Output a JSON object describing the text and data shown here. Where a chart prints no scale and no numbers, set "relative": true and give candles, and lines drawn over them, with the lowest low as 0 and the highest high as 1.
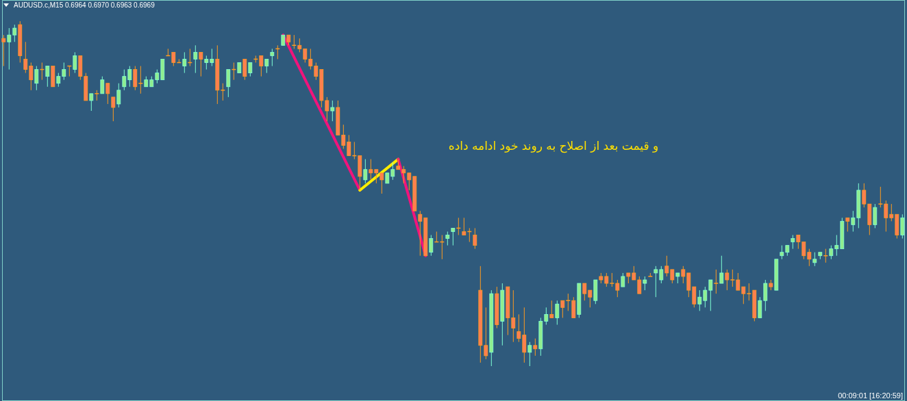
{
  "chart_data": {
    "type": "candlestick",
    "title": "AUDUSD.c,M15  0.6964 0.6970 0.6963 0.6969",
    "relative": true,
    "categories": [
      null,
      null,
      null,
      null,
      null,
      null,
      null,
      null,
      null,
      null,
      null,
      null,
      null,
      null,
      null,
      null,
      null,
      null,
      null,
      null,
      null,
      null,
      null,
      null,
      null,
      null,
      null,
      null,
      null,
      null,
      null,
      null,
      null,
      null,
      null,
      null,
      null,
      null,
      null,
      null,
      null,
      null,
      null,
      null,
      null,
      null,
      null,
      null,
      null,
      null,
      null,
      null,
      null,
      null,
      null,
      null,
      null,
      null,
      null,
      null,
      null,
      null,
      null,
      null,
      null,
      null,
      null,
      null,
      null,
      null,
      null,
      null,
      null,
      null,
      null,
      null,
      null,
      null,
      null,
      null,
      null,
      null,
      null,
      null,
      null,
      null,
      null,
      null,
      null,
      null,
      null,
      null,
      null,
      null,
      null,
      null,
      null,
      null,
      null,
      null,
      null,
      null,
      null,
      null,
      null,
      null,
      null,
      null,
      null,
      null,
      null,
      null,
      null,
      null,
      null,
      null,
      null,
      null,
      null,
      null,
      null,
      null,
      null,
      null,
      null,
      null,
      null,
      null,
      null,
      null,
      null,
      null,
      null,
      null,
      null,
      null,
      null,
      null,
      null,
      null,
      null,
      null,
      null,
      null,
      null,
      null,
      null,
      null,
      null,
      null,
      null,
      null,
      null,
      null,
      null,
      null,
      null,
      null,
      null,
      null,
      null,
      null,
      null,
      null,
      null
    ],
    "ohlc": [
      [
        0.95,
        0.96,
        0.87,
        0.94
      ],
      [
        0.94,
        0.98,
        0.86,
        0.96
      ],
      [
        0.96,
        0.99,
        0.94,
        0.98
      ],
      [
        0.99,
        1.0,
        0.88,
        0.9
      ],
      [
        0.89,
        0.94,
        0.85,
        0.86
      ],
      [
        0.87,
        0.88,
        0.8,
        0.83
      ],
      [
        0.82,
        0.87,
        0.8,
        0.86
      ],
      [
        0.86,
        0.88,
        0.83,
        0.86
      ],
      [
        0.84,
        0.87,
        0.81,
        0.87
      ],
      [
        0.87,
        0.87,
        0.81,
        0.81
      ],
      [
        0.82,
        0.85,
        0.81,
        0.84
      ],
      [
        0.84,
        0.88,
        0.83,
        0.86
      ],
      [
        0.87,
        0.87,
        0.84,
        0.87
      ],
      [
        0.86,
        0.91,
        0.85,
        0.9
      ],
      [
        0.9,
        0.9,
        0.83,
        0.84
      ],
      [
        0.84,
        0.85,
        0.77,
        0.77
      ],
      [
        0.77,
        0.79,
        0.74,
        0.79
      ],
      [
        0.79,
        0.8,
        0.77,
        0.79
      ],
      [
        0.79,
        0.84,
        0.79,
        0.83
      ],
      [
        0.82,
        0.82,
        0.76,
        0.79
      ],
      [
        0.78,
        0.78,
        0.71,
        0.75
      ],
      [
        0.76,
        0.82,
        0.75,
        0.8
      ],
      [
        0.81,
        0.86,
        0.8,
        0.84
      ],
      [
        0.83,
        0.87,
        0.81,
        0.86
      ],
      [
        0.86,
        0.87,
        0.8,
        0.81
      ],
      [
        0.82,
        0.87,
        0.79,
        0.82
      ],
      [
        0.81,
        0.84,
        0.81,
        0.83
      ],
      [
        0.81,
        0.84,
        0.81,
        0.83
      ],
      [
        0.83,
        0.86,
        0.82,
        0.85
      ],
      [
        0.83,
        0.89,
        0.83,
        0.89
      ],
      [
        0.9,
        0.92,
        0.9,
        0.9
      ],
      [
        0.91,
        0.91,
        0.87,
        0.88
      ],
      [
        0.88,
        0.89,
        0.88,
        0.88
      ],
      [
        0.87,
        0.91,
        0.85,
        0.89
      ],
      [
        0.88,
        0.92,
        0.87,
        0.88
      ],
      [
        0.89,
        0.93,
        0.85,
        0.91
      ],
      [
        0.91,
        0.91,
        0.84,
        0.89
      ],
      [
        0.88,
        0.9,
        0.86,
        0.89
      ],
      [
        0.88,
        0.92,
        0.87,
        0.89
      ],
      [
        0.89,
        0.93,
        0.76,
        0.8
      ],
      [
        0.8,
        0.82,
        0.77,
        0.8
      ],
      [
        0.81,
        0.86,
        0.78,
        0.86
      ],
      [
        0.86,
        0.88,
        0.83,
        0.86
      ],
      [
        0.85,
        0.88,
        0.85,
        0.88
      ],
      [
        0.89,
        0.89,
        0.83,
        0.84
      ],
      [
        0.85,
        0.88,
        0.84,
        0.88
      ],
      [
        0.89,
        0.9,
        0.88,
        0.89
      ],
      [
        0.9,
        0.9,
        0.84,
        0.87
      ],
      [
        0.87,
        0.89,
        0.85,
        0.89
      ],
      [
        0.9,
        0.92,
        0.87,
        0.91
      ],
      [
        0.92,
        0.93,
        0.89,
        0.92
      ],
      [
        0.93,
        0.96,
        0.93,
        0.96
      ],
      [
        0.96,
        0.96,
        0.93,
        0.94
      ],
      [
        0.93,
        0.96,
        0.92,
        0.93
      ],
      [
        0.93,
        0.95,
        0.91,
        0.92
      ],
      [
        0.92,
        0.92,
        0.88,
        0.89
      ],
      [
        0.89,
        0.92,
        0.86,
        0.87
      ],
      [
        0.87,
        0.88,
        0.83,
        0.84
      ],
      [
        0.86,
        0.86,
        0.75,
        0.77
      ],
      [
        0.77,
        0.78,
        0.71,
        0.74
      ],
      [
        0.74,
        0.77,
        0.71,
        0.75
      ],
      [
        0.75,
        0.77,
        0.67,
        0.67
      ],
      [
        0.67,
        0.7,
        0.63,
        0.64
      ],
      [
        0.65,
        0.67,
        0.61,
        0.61
      ],
      [
        0.61,
        0.65,
        0.6,
        0.61
      ],
      [
        0.61,
        0.61,
        0.51,
        0.55
      ],
      [
        0.54,
        0.6,
        0.53,
        0.57
      ],
      [
        0.57,
        0.6,
        0.54,
        0.56
      ],
      [
        0.57,
        0.57,
        0.53,
        0.56
      ],
      [
        0.56,
        0.56,
        0.5,
        0.54
      ],
      [
        0.53,
        0.56,
        0.53,
        0.56
      ],
      [
        0.55,
        0.59,
        0.54,
        0.57
      ],
      [
        0.58,
        0.6,
        0.57,
        0.57
      ],
      [
        0.57,
        0.58,
        0.53,
        0.56
      ],
      [
        0.56,
        0.56,
        0.51,
        0.54
      ],
      [
        0.55,
        0.55,
        0.45,
        0.45
      ],
      [
        0.44,
        0.45,
        0.32,
        0.42
      ],
      [
        0.43,
        0.43,
        0.32,
        0.32
      ],
      [
        0.33,
        0.38,
        0.32,
        0.37
      ],
      [
        0.36,
        0.39,
        0.36,
        0.36
      ],
      [
        0.36,
        0.38,
        0.31,
        0.36
      ],
      [
        0.37,
        0.39,
        0.35,
        0.38
      ],
      [
        0.39,
        0.4,
        0.35,
        0.4
      ],
      [
        0.4,
        0.43,
        0.38,
        0.4
      ],
      [
        0.39,
        0.43,
        0.38,
        0.38
      ],
      [
        0.39,
        0.4,
        0.36,
        0.39
      ],
      [
        0.38,
        0.4,
        0.34,
        0.35
      ],
      [
        0.22,
        0.29,
        0.01,
        0.06
      ],
      [
        0.06,
        0.17,
        0.02,
        0.03
      ],
      [
        0.04,
        0.22,
        0.0,
        0.21
      ],
      [
        0.21,
        0.23,
        0.11,
        0.12
      ],
      [
        0.13,
        0.24,
        0.06,
        0.22
      ],
      [
        0.23,
        0.23,
        0.09,
        0.14
      ],
      [
        0.14,
        0.22,
        0.07,
        0.11
      ],
      [
        0.1,
        0.15,
        0.07,
        0.08
      ],
      [
        0.09,
        0.17,
        0.01,
        0.04
      ],
      [
        0.04,
        0.07,
        0.0,
        0.06
      ],
      [
        0.06,
        0.08,
        0.03,
        0.05
      ],
      [
        0.05,
        0.14,
        0.03,
        0.13
      ],
      [
        0.13,
        0.17,
        0.12,
        0.15
      ],
      [
        0.15,
        0.19,
        0.14,
        0.14
      ],
      [
        0.14,
        0.19,
        0.12,
        0.18
      ],
      [
        0.19,
        0.19,
        0.14,
        0.17
      ],
      [
        0.19,
        0.21,
        0.16,
        0.19
      ],
      [
        0.19,
        0.2,
        0.14,
        0.14
      ],
      [
        0.15,
        0.24,
        0.14,
        0.24
      ],
      [
        0.24,
        0.24,
        0.19,
        0.21
      ],
      [
        0.22,
        0.22,
        0.17,
        0.2
      ],
      [
        0.19,
        0.25,
        0.18,
        0.25
      ],
      [
        0.26,
        0.27,
        0.24,
        0.25
      ],
      [
        0.26,
        0.27,
        0.23,
        0.24
      ],
      [
        0.24,
        0.27,
        0.23,
        0.24
      ],
      [
        0.24,
        0.25,
        0.2,
        0.22
      ],
      [
        0.23,
        0.27,
        0.23,
        0.26
      ],
      [
        0.27,
        0.27,
        0.24,
        0.26
      ],
      [
        0.27,
        0.29,
        0.25,
        0.25
      ],
      [
        0.25,
        0.26,
        0.21,
        0.21
      ],
      [
        0.24,
        0.26,
        0.22,
        0.25
      ],
      [
        0.26,
        0.27,
        0.26,
        0.26
      ],
      [
        0.27,
        0.29,
        0.2,
        0.28
      ],
      [
        0.25,
        0.29,
        0.24,
        0.28
      ],
      [
        0.29,
        0.32,
        0.26,
        0.27
      ],
      [
        0.28,
        0.28,
        0.24,
        0.25
      ],
      [
        0.26,
        0.27,
        0.24,
        0.27
      ],
      [
        0.28,
        0.29,
        0.24,
        0.26
      ],
      [
        0.27,
        0.27,
        0.2,
        0.22
      ],
      [
        0.23,
        0.23,
        0.17,
        0.18
      ],
      [
        0.18,
        0.22,
        0.16,
        0.2
      ],
      [
        0.19,
        0.23,
        0.17,
        0.22
      ],
      [
        0.22,
        0.25,
        0.16,
        0.25
      ],
      [
        0.24,
        0.28,
        0.21,
        0.24
      ],
      [
        0.24,
        0.32,
        0.24,
        0.27
      ],
      [
        0.27,
        0.28,
        0.22,
        0.25
      ],
      [
        0.25,
        0.28,
        0.23,
        0.25
      ],
      [
        0.25,
        0.27,
        0.22,
        0.22
      ],
      [
        0.23,
        0.23,
        0.18,
        0.21
      ],
      [
        0.21,
        0.24,
        0.19,
        0.21
      ],
      [
        0.22,
        0.22,
        0.13,
        0.14
      ],
      [
        0.14,
        0.2,
        0.14,
        0.19
      ],
      [
        0.19,
        0.25,
        0.16,
        0.24
      ],
      [
        0.24,
        0.25,
        0.22,
        0.23
      ],
      [
        0.22,
        0.31,
        0.22,
        0.31
      ],
      [
        0.32,
        0.35,
        0.31,
        0.33
      ],
      [
        0.33,
        0.35,
        0.32,
        0.35
      ],
      [
        0.36,
        0.38,
        0.34,
        0.37
      ],
      [
        0.38,
        0.38,
        0.34,
        0.36
      ],
      [
        0.36,
        0.36,
        0.31,
        0.32
      ],
      [
        0.33,
        0.34,
        0.29,
        0.31
      ],
      [
        0.3,
        0.33,
        0.29,
        0.31
      ],
      [
        0.32,
        0.33,
        0.31,
        0.33
      ],
      [
        0.32,
        0.34,
        0.3,
        0.32
      ],
      [
        0.32,
        0.35,
        0.31,
        0.34
      ],
      [
        0.34,
        0.38,
        0.32,
        0.35
      ],
      [
        0.34,
        0.43,
        0.34,
        0.42
      ],
      [
        0.43,
        0.43,
        0.39,
        0.42
      ],
      [
        0.41,
        0.45,
        0.39,
        0.43
      ],
      [
        0.43,
        0.53,
        0.4,
        0.51
      ],
      [
        0.51,
        0.53,
        0.46,
        0.47
      ],
      [
        0.47,
        0.47,
        0.38,
        0.41
      ],
      [
        0.41,
        0.47,
        0.4,
        0.46
      ],
      [
        0.47,
        0.52,
        0.46,
        0.47
      ],
      [
        0.47,
        0.48,
        0.39,
        0.43
      ],
      [
        0.44,
        0.47,
        0.42,
        0.43
      ],
      [
        0.44,
        0.44,
        0.37,
        0.38
      ],
      [
        0.38,
        0.44,
        0.37,
        0.43
      ]
    ],
    "series": [
      {
        "type": "line",
        "color": "#f0147c",
        "values": [
          null,
          null,
          null,
          null,
          null,
          null,
          null,
          null,
          null,
          null,
          null,
          null,
          null,
          null,
          null,
          null,
          null,
          null,
          null,
          null,
          null,
          null,
          null,
          null,
          null,
          null,
          null,
          null,
          null,
          null,
          null,
          null,
          null,
          null,
          null,
          null,
          null,
          null,
          null,
          null,
          null,
          null,
          null,
          null,
          null,
          null,
          null,
          null,
          null,
          null,
          null,
          0.96,
          null,
          null,
          null,
          null,
          null,
          null,
          null,
          null,
          null,
          null,
          null,
          null,
          null,
          0.51,
          null,
          null,
          null,
          null,
          null,
          null,
          null,
          null,
          null,
          null,
          null,
          null,
          null,
          null,
          null,
          null,
          null,
          null,
          null,
          null,
          null,
          null,
          null,
          null,
          null,
          null,
          null,
          null,
          null,
          null,
          null,
          null,
          null,
          null,
          null,
          null,
          null,
          null,
          null,
          null,
          null,
          null,
          null,
          null,
          null,
          null,
          null,
          null,
          null,
          null,
          null,
          null,
          null,
          null,
          null,
          null,
          null,
          null,
          null,
          null,
          null,
          null,
          null,
          null,
          null,
          null,
          null,
          null,
          null,
          null,
          null,
          null,
          null,
          null,
          null,
          null,
          null,
          null,
          null,
          null,
          null,
          null,
          null,
          null,
          null,
          null,
          null,
          null,
          null,
          null,
          null,
          null,
          null,
          null,
          null,
          null,
          null,
          null,
          null
        ]
      },
      {
        "type": "line",
        "color": "#ffee00",
        "values": [
          null,
          null,
          null,
          null,
          null,
          null,
          null,
          null,
          null,
          null,
          null,
          null,
          null,
          null,
          null,
          null,
          null,
          null,
          null,
          null,
          null,
          null,
          null,
          null,
          null,
          null,
          null,
          null,
          null,
          null,
          null,
          null,
          null,
          null,
          null,
          null,
          null,
          null,
          null,
          null,
          null,
          null,
          null,
          null,
          null,
          null,
          null,
          null,
          null,
          null,
          null,
          null,
          null,
          null,
          null,
          null,
          null,
          null,
          null,
          null,
          null,
          null,
          null,
          null,
          null,
          0.51,
          null,
          null,
          null,
          null,
          null,
          null,
          0.6,
          null,
          null,
          null,
          null,
          null,
          null,
          null,
          null,
          null,
          null,
          null,
          null,
          null,
          null,
          null,
          null,
          null,
          null,
          null,
          null,
          null,
          null,
          null,
          null,
          null,
          null,
          null,
          null,
          null,
          null,
          null,
          null,
          null,
          null,
          null,
          null,
          null,
          null,
          null,
          null,
          null,
          null,
          null,
          null,
          null,
          null,
          null,
          null,
          null,
          null,
          null,
          null,
          null,
          null,
          null,
          null,
          null,
          null,
          null,
          null,
          null,
          null,
          null,
          null,
          null,
          null,
          null,
          null,
          null,
          null,
          null,
          null,
          null,
          null,
          null,
          null,
          null,
          null,
          null,
          null,
          null,
          null,
          null,
          null,
          null,
          null,
          null,
          null,
          null,
          null,
          null,
          null
        ]
      },
      {
        "type": "line",
        "color": "#f0147c",
        "values": [
          null,
          null,
          null,
          null,
          null,
          null,
          null,
          null,
          null,
          null,
          null,
          null,
          null,
          null,
          null,
          null,
          null,
          null,
          null,
          null,
          null,
          null,
          null,
          null,
          null,
          null,
          null,
          null,
          null,
          null,
          null,
          null,
          null,
          null,
          null,
          null,
          null,
          null,
          null,
          null,
          null,
          null,
          null,
          null,
          null,
          null,
          null,
          null,
          null,
          null,
          null,
          null,
          null,
          null,
          null,
          null,
          null,
          null,
          null,
          null,
          null,
          null,
          null,
          null,
          null,
          null,
          null,
          null,
          null,
          null,
          null,
          null,
          0.6,
          null,
          null,
          null,
          null,
          0.32,
          null,
          null,
          null,
          null,
          null,
          null,
          null,
          null,
          null,
          null,
          null,
          null,
          null,
          null,
          null,
          null,
          null,
          null,
          null,
          null,
          null,
          null,
          null,
          null,
          null,
          null,
          null,
          null,
          null,
          null,
          null,
          null,
          null,
          null,
          null,
          null,
          null,
          null,
          null,
          null,
          null,
          null,
          null,
          null,
          null,
          null,
          null,
          null,
          null,
          null,
          null,
          null,
          null,
          null,
          null,
          null,
          null,
          null,
          null,
          null,
          null,
          null,
          null,
          null,
          null,
          null,
          null,
          null,
          null,
          null,
          null,
          null,
          null,
          null,
          null,
          null,
          null,
          null,
          null,
          null,
          null,
          null,
          null,
          null,
          null,
          null,
          null
        ]
      }
    ],
    "annotations": [
      "و قیمت بعد از اصلاح به روند خود ادامه داده",
      "00:09:01 [16:20:59]"
    ]
  }
}
